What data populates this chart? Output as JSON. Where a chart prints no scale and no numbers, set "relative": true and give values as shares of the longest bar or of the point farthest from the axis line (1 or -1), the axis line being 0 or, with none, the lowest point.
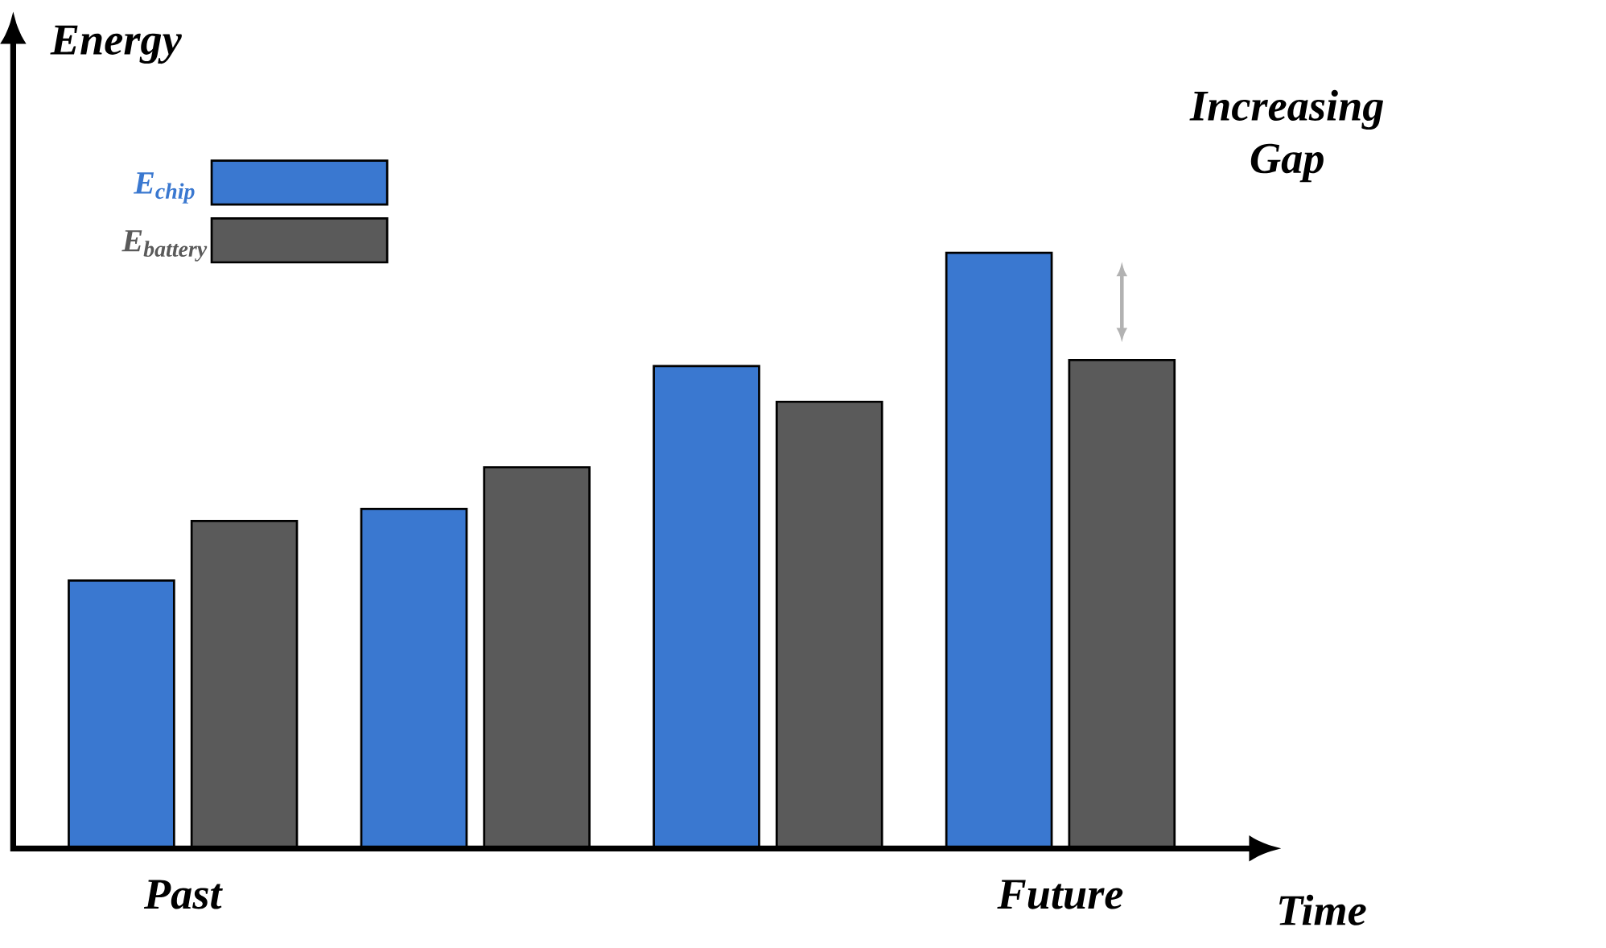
{
  "chart_data": {
    "type": "bar",
    "relative": true,
    "xlabel": "Time",
    "ylabel": "Energy",
    "categories": [
      "Past",
      null,
      null,
      "Future"
    ],
    "series": [
      {
        "name": "E$_{chip}$",
        "color": "#3a78d0",
        "values": [
          0.45,
          0.57,
          0.81,
          1.0
        ]
      },
      {
        "name": "E$_{battery}$",
        "color": "#5a5a5a",
        "values": [
          0.55,
          0.64,
          0.75,
          0.82
        ]
      }
    ],
    "legend": "top left",
    "annotations": [
      "Increasing Gap"
    ]
  }
}
